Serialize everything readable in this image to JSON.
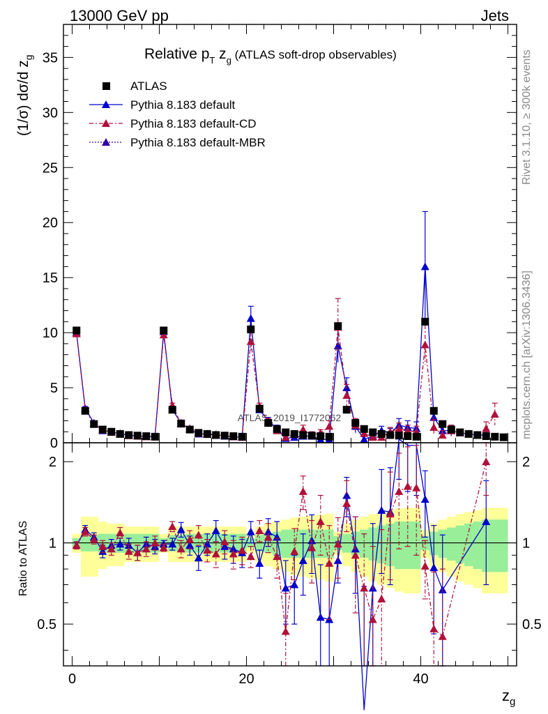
{
  "header": {
    "left": "13000 GeV pp",
    "right": "Jets"
  },
  "side": {
    "top": "Rivet 3.1.10, ≥ 300k events",
    "bottom": "mcplots.cern.ch [arXiv:1306.3436]"
  },
  "watermark": "ATLAS_2019_I1772062",
  "colors": {
    "atlas": "#000000",
    "default": "#0000cc",
    "cd": "#b0103a",
    "mbr": "#3300aa",
    "band_inner": "#99ee99",
    "band_outer": "#ffff99"
  },
  "chart_data": {
    "type": "scatter",
    "title_main": "Relative p",
    "title_sub_T": "T",
    "title_mid": " z",
    "title_sub_g": "g",
    "title_tail": " (ATLAS soft-drop observables)",
    "ylabel_pre": "(1/σ) dσ/d z",
    "ylabel_sub": "g",
    "xlabel": "z",
    "xlabel_sub": "g",
    "ratio_ylabel": "Ratio to ATLAS",
    "xlim": [
      -1,
      51
    ],
    "ylim": [
      0,
      38
    ],
    "ratio_ylim": [
      0.35,
      2.35
    ],
    "x_ticks": [
      "0",
      "20",
      "40"
    ],
    "y_ticks": [
      "0",
      "5",
      "10",
      "15",
      "20",
      "25",
      "30",
      "35"
    ],
    "ratio_ticks": [
      "0.5",
      "1",
      "2"
    ],
    "legend": [
      {
        "name": "ATLAS",
        "style": "atlas"
      },
      {
        "name": "Pythia 8.183 default",
        "style": "default"
      },
      {
        "name": "Pythia 8.183 default-CD",
        "style": "cd"
      },
      {
        "name": "Pythia 8.183 default-MBR",
        "style": "mbr"
      }
    ],
    "x": [
      0.5,
      1.5,
      2.5,
      3.5,
      4.5,
      5.5,
      6.5,
      7.5,
      8.5,
      9.5,
      10.5,
      11.5,
      12.5,
      13.5,
      14.5,
      15.5,
      16.5,
      17.5,
      18.5,
      19.5,
      20.5,
      21.5,
      22.5,
      23.5,
      24.5,
      25.5,
      26.5,
      27.5,
      28.5,
      29.5,
      30.5,
      31.5,
      32.5,
      33.5,
      34.5,
      35.5,
      36.5,
      37.5,
      38.5,
      39.5,
      40.5,
      41.5,
      42.5,
      43.5,
      44.5,
      45.5,
      46.5,
      47.5,
      48.5,
      49.5
    ],
    "atlas": [
      10.2,
      2.9,
      1.7,
      1.2,
      1.0,
      0.8,
      0.7,
      0.65,
      0.6,
      0.55,
      10.2,
      3.0,
      1.75,
      1.2,
      0.9,
      0.8,
      0.7,
      0.65,
      0.6,
      0.55,
      10.3,
      3.1,
      1.8,
      1.25,
      0.95,
      0.8,
      0.7,
      0.65,
      0.6,
      0.55,
      10.6,
      3.0,
      1.8,
      1.25,
      0.95,
      0.8,
      0.7,
      0.65,
      0.6,
      0.55,
      11.0,
      2.9,
      1.7,
      1.2,
      0.95,
      0.8,
      0.7,
      0.6,
      0.55,
      0.5
    ],
    "series": [
      {
        "name": "Pythia 8.183 default",
        "style": "default",
        "values": [
          10.0,
          3.1,
          1.8,
          1.1,
          1.0,
          0.8,
          0.7,
          0.6,
          0.6,
          0.55,
          10.1,
          3.0,
          1.8,
          1.2,
          0.8,
          0.8,
          0.75,
          0.6,
          0.55,
          0.5,
          11.3,
          3.0,
          2.0,
          1.3,
          0.4,
          0.5,
          0.6,
          0.6,
          0.3,
          0.3,
          8.8,
          5.0,
          1.5,
          0.3,
          0.6,
          1.1,
          0.9,
          1.6,
          1.4,
          1.3,
          16.0,
          2.3,
          1.1,
          1.1,
          0.9,
          0.8,
          0.7,
          0.7,
          null,
          null
        ],
        "err": [
          0.3,
          0.2,
          0.1,
          0.1,
          0.1,
          0.1,
          0.1,
          0.1,
          0.1,
          0.1,
          0.3,
          0.2,
          0.2,
          0.1,
          0.1,
          0.1,
          0.1,
          0.1,
          0.1,
          0.1,
          1.1,
          0.3,
          0.3,
          0.3,
          0.2,
          0.2,
          0.2,
          0.2,
          0.2,
          0.2,
          1.5,
          0.9,
          0.6,
          0.3,
          0.3,
          0.4,
          0.4,
          0.6,
          0.6,
          0.6,
          5.0,
          0.9,
          0.5,
          0.5,
          0.3,
          0.3,
          0.3,
          0.3,
          null,
          null
        ]
      },
      {
        "name": "Pythia 8.183 default-CD",
        "style": "cd",
        "values": [
          9.9,
          3.0,
          1.7,
          1.15,
          0.95,
          0.85,
          0.65,
          0.6,
          0.55,
          0.55,
          9.8,
          3.4,
          1.7,
          1.3,
          0.85,
          0.75,
          0.7,
          0.65,
          0.55,
          0.5,
          9.2,
          3.3,
          1.9,
          1.1,
          0.5,
          0.75,
          1.2,
          0.7,
          0.9,
          1.5,
          10.5,
          4.3,
          1.6,
          0.85,
          0.5,
          0.5,
          1.0,
          1.3,
          1.1,
          1.0,
          8.9,
          1.4,
          0.7,
          1.1,
          0.9,
          0.8,
          0.7,
          1.3,
          2.6,
          null
        ],
        "err": [
          0.3,
          0.2,
          0.1,
          0.1,
          0.1,
          0.1,
          0.1,
          0.1,
          0.1,
          0.1,
          0.3,
          0.2,
          0.2,
          0.1,
          0.1,
          0.1,
          0.1,
          0.1,
          0.1,
          0.1,
          0.8,
          0.3,
          0.3,
          0.3,
          0.2,
          0.3,
          0.4,
          0.3,
          0.3,
          0.5,
          2.6,
          1.0,
          0.6,
          0.4,
          0.3,
          0.3,
          0.4,
          0.5,
          0.5,
          0.5,
          1.8,
          0.7,
          0.4,
          0.5,
          0.3,
          0.3,
          0.3,
          0.6,
          1.0,
          null
        ]
      }
    ],
    "ratio": [
      {
        "style": "default",
        "values": [
          0.98,
          1.12,
          1.05,
          0.93,
          0.98,
          0.99,
          0.98,
          0.92,
          0.99,
          0.97,
          0.99,
          0.99,
          1.12,
          0.98,
          0.88,
          0.99,
          1.11,
          0.97,
          0.95,
          0.92,
          1.1,
          0.84,
          1.1,
          1.05,
          0.68,
          0.7,
          0.86,
          1.02,
          0.53,
          0.52,
          0.86,
          1.5,
          0.95,
          0.24,
          0.68,
          1.32,
          1.3,
          2.42,
          2.3,
          2.3,
          1.45,
          0.81,
          0.67,
          null,
          null,
          null,
          null,
          1.2,
          null,
          null
        ],
        "err": [
          0.03,
          0.04,
          0.04,
          0.05,
          0.05,
          0.05,
          0.06,
          0.06,
          0.06,
          0.06,
          0.03,
          0.05,
          0.07,
          0.08,
          0.09,
          0.09,
          0.1,
          0.1,
          0.11,
          0.11,
          0.1,
          0.1,
          0.13,
          0.15,
          0.18,
          0.2,
          0.22,
          0.25,
          0.3,
          0.32,
          0.15,
          0.25,
          0.3,
          0.45,
          0.5,
          0.55,
          0.6,
          0.7,
          0.75,
          0.8,
          0.4,
          0.35,
          0.4,
          null,
          null,
          null,
          null,
          0.5,
          null,
          null
        ]
      },
      {
        "style": "cd",
        "values": [
          0.98,
          1.1,
          1.03,
          0.97,
          0.95,
          1.09,
          0.93,
          0.92,
          0.95,
          1.0,
          0.96,
          1.15,
          0.95,
          1.03,
          1.07,
          0.94,
          0.91,
          1.01,
          0.91,
          0.94,
          0.89,
          1.11,
          1.05,
          0.89,
          0.47,
          0.93,
          1.55,
          0.96,
          1.2,
          0.84,
          0.99,
          1.4,
          0.9,
          0.68,
          0.52,
          0.62,
          1.28,
          1.55,
          1.62,
          1.6,
          0.82,
          0.48,
          0.45,
          null,
          null,
          null,
          null,
          2.0,
          null,
          null
        ],
        "err": [
          0.03,
          0.04,
          0.04,
          0.05,
          0.05,
          0.05,
          0.06,
          0.06,
          0.06,
          0.06,
          0.03,
          0.05,
          0.07,
          0.08,
          0.09,
          0.09,
          0.1,
          0.1,
          0.11,
          0.11,
          0.08,
          0.1,
          0.13,
          0.15,
          0.18,
          0.2,
          0.22,
          0.25,
          0.3,
          0.32,
          0.25,
          0.3,
          0.35,
          0.4,
          0.45,
          0.5,
          0.55,
          0.6,
          0.65,
          0.7,
          0.2,
          0.3,
          0.35,
          null,
          null,
          null,
          null,
          0.5,
          null,
          null
        ]
      }
    ],
    "band_inner": [
      0.04,
      0.07,
      0.07,
      0.08,
      0.08,
      0.08,
      0.08,
      0.08,
      0.08,
      0.08,
      0.04,
      0.07,
      0.07,
      0.08,
      0.08,
      0.08,
      0.08,
      0.08,
      0.08,
      0.08,
      0.04,
      0.07,
      0.08,
      0.1,
      0.12,
      0.12,
      0.12,
      0.12,
      0.12,
      0.12,
      0.06,
      0.08,
      0.1,
      0.12,
      0.14,
      0.16,
      0.18,
      0.2,
      0.2,
      0.2,
      0.06,
      0.1,
      0.12,
      0.14,
      0.16,
      0.18,
      0.2,
      0.22,
      0.22,
      0.22
    ],
    "band_outer": [
      0.08,
      0.25,
      0.25,
      0.2,
      0.18,
      0.18,
      0.15,
      0.15,
      0.15,
      0.15,
      0.08,
      0.15,
      0.15,
      0.15,
      0.15,
      0.15,
      0.15,
      0.15,
      0.15,
      0.15,
      0.08,
      0.15,
      0.18,
      0.2,
      0.22,
      0.24,
      0.25,
      0.26,
      0.27,
      0.28,
      0.1,
      0.18,
      0.22,
      0.25,
      0.28,
      0.3,
      0.32,
      0.34,
      0.35,
      0.35,
      0.12,
      0.18,
      0.22,
      0.25,
      0.28,
      0.3,
      0.32,
      0.35,
      0.35,
      0.35
    ]
  }
}
